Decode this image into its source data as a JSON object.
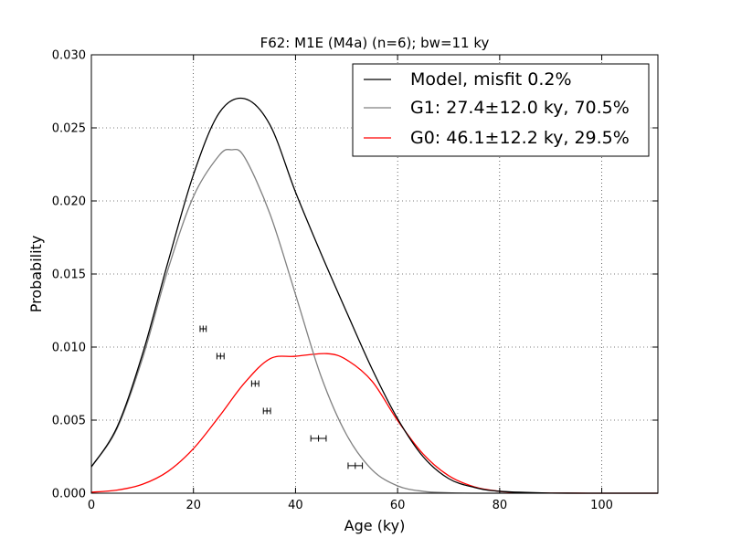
{
  "chart_data": {
    "type": "line",
    "title": "F62: M1E (M4a) (n=6); bw=11 ky",
    "xlabel": "Age (ky)",
    "ylabel": "Probability",
    "xlim": [
      0,
      111
    ],
    "ylim": [
      0,
      0.03
    ],
    "xticks": [
      0,
      20,
      40,
      60,
      80,
      100
    ],
    "xtick_labels": [
      "0",
      "20",
      "40",
      "60",
      "80",
      "100"
    ],
    "yticks": [
      0,
      0.005,
      0.01,
      0.015,
      0.02,
      0.025,
      0.03
    ],
    "ytick_labels": [
      "0.000",
      "0.005",
      "0.010",
      "0.015",
      "0.020",
      "0.025",
      "0.030"
    ],
    "grid": true,
    "legend_position": "top-right",
    "series": [
      {
        "name": "Model, misfit 0.2%",
        "color": "#000000",
        "x": [
          0,
          5,
          10,
          15,
          20,
          25,
          30,
          35,
          40,
          45,
          50,
          55,
          60,
          65,
          70,
          75,
          80,
          90,
          100,
          111
        ],
        "y": [
          0.0018,
          0.0045,
          0.0095,
          0.0158,
          0.0218,
          0.026,
          0.027,
          0.0252,
          0.0206,
          0.0164,
          0.0124,
          0.0085,
          0.0051,
          0.0025,
          0.001,
          0.0004,
          0.00013,
          1e-05,
          0.0,
          0.0
        ]
      },
      {
        "name": "G1: 27.4±12.0 ky, 70.5%",
        "color": "#808080",
        "x": [
          0,
          5,
          10,
          15,
          20,
          25,
          27.4,
          30,
          35,
          40,
          45,
          50,
          55,
          60,
          65,
          70,
          75,
          80,
          111
        ],
        "y": [
          0.0018,
          0.0044,
          0.0092,
          0.0153,
          0.0203,
          0.0231,
          0.0235,
          0.023,
          0.0191,
          0.0136,
          0.008,
          0.004,
          0.0016,
          0.0005,
          0.00013,
          3e-05,
          0.0,
          0.0,
          0.0
        ]
      },
      {
        "name": "G0: 46.1±12.2 ky, 29.5%",
        "color": "#ff0000",
        "x": [
          0,
          5,
          10,
          15,
          20,
          25,
          30,
          35,
          40,
          46.1,
          50,
          55,
          60,
          65,
          70,
          75,
          80,
          85,
          90,
          100,
          111
        ],
        "y": [
          7e-05,
          0.00021,
          0.00061,
          0.00149,
          0.00305,
          0.00523,
          0.00754,
          0.0092,
          0.00937,
          0.00955,
          0.00913,
          0.00766,
          0.00497,
          0.00268,
          0.0012,
          0.00044,
          0.00013,
          3e-05,
          1e-05,
          0.0,
          0.0
        ]
      }
    ],
    "error_points": [
      {
        "x": 21.9,
        "xerr": 0.6,
        "y": 0.01125
      },
      {
        "x": 25.3,
        "xerr": 0.7,
        "y": 0.00938
      },
      {
        "x": 32.1,
        "xerr": 0.7,
        "y": 0.0075
      },
      {
        "x": 34.4,
        "xerr": 0.7,
        "y": 0.00563
      },
      {
        "x": 44.5,
        "xerr": 1.5,
        "y": 0.00375
      },
      {
        "x": 51.7,
        "xerr": 1.4,
        "y": 0.00188
      }
    ]
  }
}
